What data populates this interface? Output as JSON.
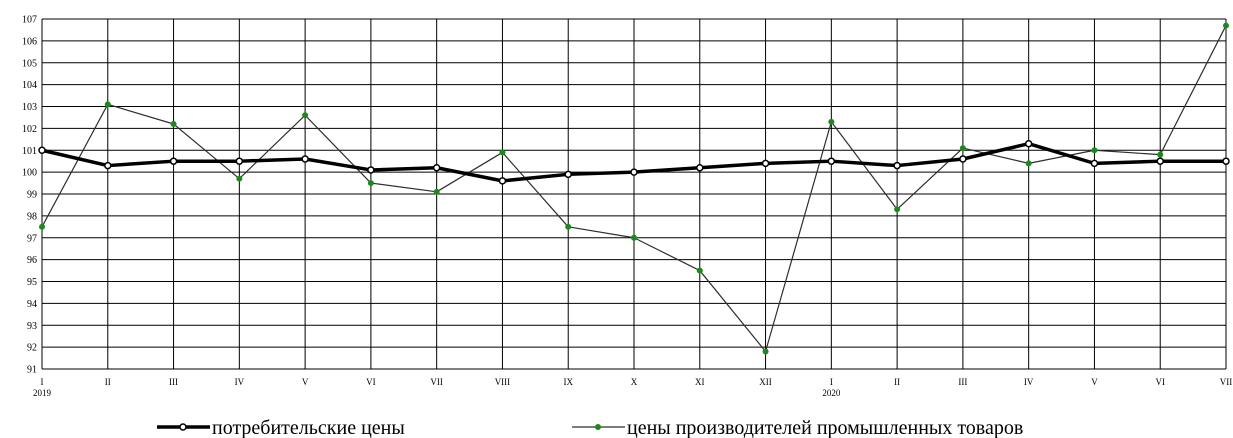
{
  "chart_data": {
    "type": "line",
    "title": "",
    "xlabel": "",
    "ylabel": "",
    "ylim": [
      91,
      107
    ],
    "yticks": [
      91,
      92,
      93,
      94,
      95,
      96,
      97,
      98,
      99,
      100,
      101,
      102,
      103,
      104,
      105,
      106,
      107
    ],
    "grid": true,
    "legend_position": "bottom",
    "categories": [
      "I",
      "II",
      "III",
      "IV",
      "V",
      "VI",
      "VII",
      "VIII",
      "IX",
      "X",
      "XI",
      "XII",
      "I",
      "II",
      "III",
      "IV",
      "V",
      "VI",
      "VII"
    ],
    "year_labels": [
      {
        "index": 0,
        "text": "2019"
      },
      {
        "index": 12,
        "text": "2020"
      }
    ],
    "series": [
      {
        "name": "потребительские цены",
        "color": "#000000",
        "marker_fill": "#ffffff",
        "values": [
          101.0,
          100.3,
          100.5,
          100.5,
          100.6,
          100.1,
          100.2,
          99.6,
          99.9,
          100.0,
          100.2,
          100.4,
          100.5,
          100.3,
          100.6,
          101.3,
          100.4,
          100.5,
          100.5
        ]
      },
      {
        "name": "цены производителей промышленных товаров",
        "color": "#2e2e2e",
        "marker_fill": "#1a8a1a",
        "values": [
          97.5,
          103.1,
          102.2,
          99.7,
          102.6,
          99.5,
          99.1,
          100.9,
          97.5,
          97.0,
          95.5,
          91.8,
          102.3,
          98.3,
          101.1,
          100.4,
          101.0,
          100.8,
          106.7
        ]
      }
    ]
  }
}
